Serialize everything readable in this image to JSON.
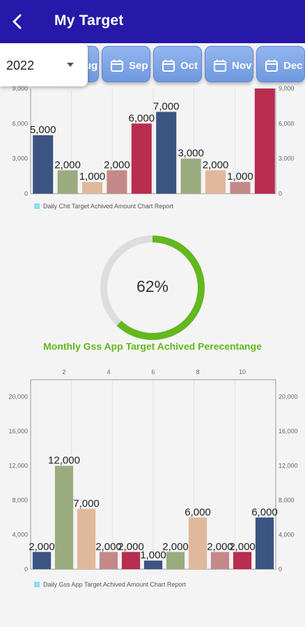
{
  "app": {
    "title": "My Target"
  },
  "year_select": {
    "value": "2022"
  },
  "months": [
    {
      "label": "Aug"
    },
    {
      "label": "Sep"
    },
    {
      "label": "Oct"
    },
    {
      "label": "Nov"
    },
    {
      "label": "Dec"
    }
  ],
  "colors": {
    "appbar": "#2618a8",
    "navy": "#3c5482",
    "sage": "#9aab7f",
    "peach": "#e0b89c",
    "rose": "#c48888",
    "crimson": "#b82d50",
    "gauge_progress": "#62b81e",
    "gauge_track": "#dddddd",
    "legend_swatch": "#8fdcf2"
  },
  "gauge": {
    "value": 62,
    "text": "62%",
    "caption": "Monthly Gss App Target Achived Perecentange"
  },
  "chart_data": [
    {
      "type": "bar",
      "title": "",
      "legend": "Daily Chit Target Achived Amount Chart Report",
      "ylim": [
        0,
        9000
      ],
      "y_ticks": [
        "0",
        "3,000",
        "6,000",
        "9,000"
      ],
      "values": [
        5000,
        2000,
        1000,
        2000,
        6000,
        7000,
        3000,
        2000,
        1000,
        9000
      ],
      "value_labels": [
        "5,000",
        "2,000",
        "1,000",
        "2,000",
        "6,000",
        "7,000",
        "3,000",
        "2,000",
        "1,000",
        ""
      ],
      "bar_colors": [
        "#3c5482",
        "#9aab7f",
        "#e0b89c",
        "#c48888",
        "#b82d50",
        "#3c5482",
        "#9aab7f",
        "#e0b89c",
        "#c48888",
        "#b82d50"
      ],
      "grid": true
    },
    {
      "type": "bar",
      "title": "",
      "legend": "Daily Gss App Target Achived Amount Chart Report",
      "ylim": [
        0,
        22000
      ],
      "y_ticks": [
        "0",
        "4,000",
        "8,000",
        "12,000",
        "16,000",
        "20,000"
      ],
      "x_ticks": [
        "2",
        "4",
        "6",
        "8",
        "10"
      ],
      "values": [
        2000,
        12000,
        7000,
        2000,
        2000,
        1000,
        2000,
        6000,
        2000,
        2000,
        6000
      ],
      "value_labels": [
        "2,000",
        "12,000",
        "7,000",
        "2,000",
        "2,000",
        "1,000",
        "2,000",
        "6,000",
        "2,000",
        "2,000",
        "6,000"
      ],
      "bar_colors": [
        "#3c5482",
        "#9aab7f",
        "#e0b89c",
        "#c48888",
        "#b82d50",
        "#3c5482",
        "#9aab7f",
        "#e0b89c",
        "#c48888",
        "#b82d50",
        "#3c5482"
      ],
      "grid": true
    }
  ]
}
